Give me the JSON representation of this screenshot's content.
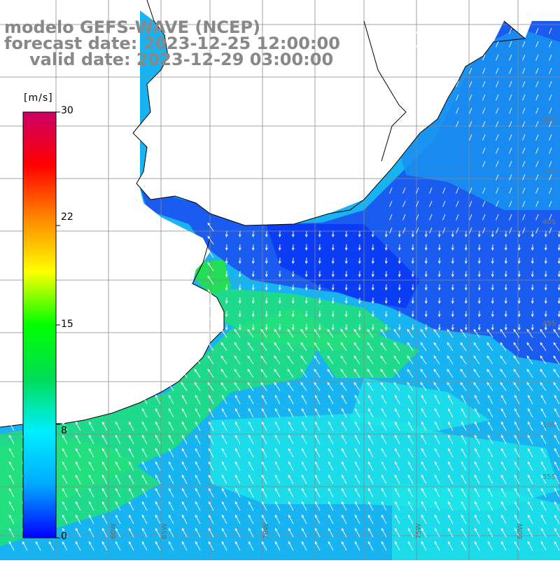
{
  "title": {
    "model": "modelo GEFS-WAVE (NCEP)",
    "forecast": "forecast date: 2023-12-25 12:00:00",
    "valid": "valid date: 2023-12-29 03:00:00"
  },
  "colorbar": {
    "unit": "[m/s]",
    "ticks": [
      "30",
      "22",
      "15",
      "8",
      "0"
    ],
    "tick_values": [
      30,
      22,
      15,
      8,
      0
    ],
    "range": [
      0,
      30
    ],
    "stops": [
      "#0000ff",
      "#00aaff",
      "#00eeff",
      "#00dd55",
      "#00ff00",
      "#ffff00",
      "#ff8800",
      "#ff0000",
      "#cc0066"
    ]
  },
  "colors": {
    "land": "#ffffff",
    "grid": "#888888",
    "coast": "#000000",
    "arrow": "#ffffff",
    "title": "#888888"
  },
  "lat_labels": [
    "30S",
    "35S",
    "40S",
    "45S",
    "50S",
    "55S"
  ],
  "lon_labels": [
    "60W",
    "65W",
    "70W",
    "75W",
    "80W"
  ]
}
